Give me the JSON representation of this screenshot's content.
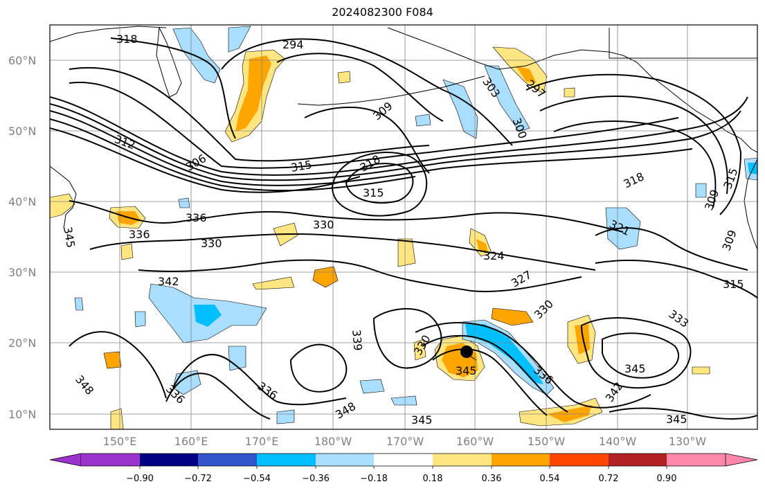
{
  "title": "2024082300 F084",
  "lat_labels": [
    "60°N",
    "50°N",
    "40°N",
    "30°N",
    "20°N",
    "10°N"
  ],
  "lon_labels": [
    "150°E",
    "160°E",
    "170°E",
    "180°W",
    "170°W",
    "160°W",
    "150°W",
    "140°W",
    "130°W"
  ],
  "contour_labels": [
    {
      "text": "318"
    },
    {
      "text": "294"
    },
    {
      "text": "309"
    },
    {
      "text": "303"
    },
    {
      "text": "297"
    },
    {
      "text": "300"
    },
    {
      "text": "312"
    },
    {
      "text": "306"
    },
    {
      "text": "315"
    },
    {
      "text": "318"
    },
    {
      "text": "315"
    },
    {
      "text": "318"
    },
    {
      "text": "309"
    },
    {
      "text": "315"
    },
    {
      "text": "345"
    },
    {
      "text": "336"
    },
    {
      "text": "336"
    },
    {
      "text": "330"
    },
    {
      "text": "330"
    },
    {
      "text": "321"
    },
    {
      "text": "309"
    },
    {
      "text": "324"
    },
    {
      "text": "327"
    },
    {
      "text": "342"
    },
    {
      "text": "330"
    },
    {
      "text": "315"
    },
    {
      "text": "333"
    },
    {
      "text": "339"
    },
    {
      "text": "330"
    },
    {
      "text": "345"
    },
    {
      "text": "348"
    },
    {
      "text": "336"
    },
    {
      "text": "336"
    },
    {
      "text": "348"
    },
    {
      "text": "336"
    },
    {
      "text": "345"
    },
    {
      "text": "342"
    },
    {
      "text": "345"
    },
    {
      "text": "345"
    }
  ],
  "colorbar": {
    "ticks": [
      "−0.90",
      "−0.72",
      "−0.54",
      "−0.36",
      "−0.18",
      "0.18",
      "0.36",
      "0.54",
      "0.72",
      "0.90"
    ],
    "colors": [
      "#9933cc",
      "#000080",
      "#3355cc",
      "#00bfff",
      "#aadeff",
      "#ffffff",
      "#ffe680",
      "#ffa500",
      "#ff4500",
      "#b22222",
      "#ff88aa"
    ]
  },
  "colors": {
    "grid": "#808080",
    "coast": "#000000",
    "contour": "#000000",
    "pos_light": "#ffe680",
    "pos_mid": "#ffa500",
    "neg_light": "#aadeff",
    "neg_mid": "#00bfff"
  },
  "marker": {
    "label": "storm-center",
    "lat": 18.8,
    "lon": -160.5
  }
}
